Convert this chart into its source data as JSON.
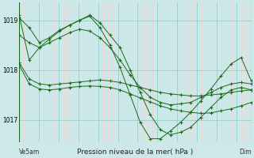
{
  "background_color": "#cce8e8",
  "plot_bg_color": "#cce8e8",
  "grid_color_minor": "#ffcccc",
  "grid_color_major": "#99cccc",
  "line_color": "#1a6b1a",
  "title": "Pression niveau de la mer( hPa )",
  "label_left": "Ve5am",
  "label_right": "Dim",
  "ylabel_ticks": [
    1017,
    1018,
    1019
  ],
  "ylim": [
    1016.55,
    1019.35
  ],
  "xlim": [
    0,
    47
  ],
  "n_points": 24,
  "series": [
    [
      1019.05,
      1018.85,
      1018.55,
      1018.65,
      1018.8,
      1018.9,
      1019.0,
      1019.1,
      1018.95,
      1018.7,
      1018.45,
      1018.0,
      1017.55,
      1017.1,
      1016.8,
      1016.7,
      1016.75,
      1016.85,
      1017.05,
      1017.25,
      1017.45,
      1017.6,
      1017.65,
      1017.6
    ],
    [
      1018.7,
      1018.55,
      1018.45,
      1018.55,
      1018.65,
      1018.75,
      1018.82,
      1018.78,
      1018.65,
      1018.45,
      1018.2,
      1017.9,
      1017.65,
      1017.45,
      1017.35,
      1017.3,
      1017.32,
      1017.35,
      1017.45,
      1017.55,
      1017.65,
      1017.72,
      1017.75,
      1017.72
    ],
    [
      1018.15,
      1017.82,
      1017.72,
      1017.7,
      1017.72,
      1017.74,
      1017.76,
      1017.78,
      1017.8,
      1017.78,
      1017.75,
      1017.7,
      1017.65,
      1017.6,
      1017.55,
      1017.52,
      1017.5,
      1017.48,
      1017.48,
      1017.5,
      1017.52,
      1017.55,
      1017.58,
      1017.6
    ],
    [
      1018.1,
      1017.72,
      1017.62,
      1017.6,
      1017.62,
      1017.65,
      1017.67,
      1017.68,
      1017.67,
      1017.65,
      1017.6,
      1017.52,
      1017.44,
      1017.36,
      1017.28,
      1017.22,
      1017.18,
      1017.15,
      1017.13,
      1017.14,
      1017.18,
      1017.22,
      1017.28,
      1017.35
    ],
    [
      1019.1,
      1018.2,
      1018.45,
      1018.62,
      1018.78,
      1018.9,
      1019.0,
      1019.08,
      1018.85,
      1018.5,
      1018.05,
      1017.5,
      1016.95,
      1016.62,
      1016.62,
      1016.78,
      1016.95,
      1017.15,
      1017.38,
      1017.62,
      1017.88,
      1018.12,
      1018.25,
      1017.78
    ]
  ],
  "figsize": [
    3.2,
    2.0
  ],
  "dpi": 100
}
